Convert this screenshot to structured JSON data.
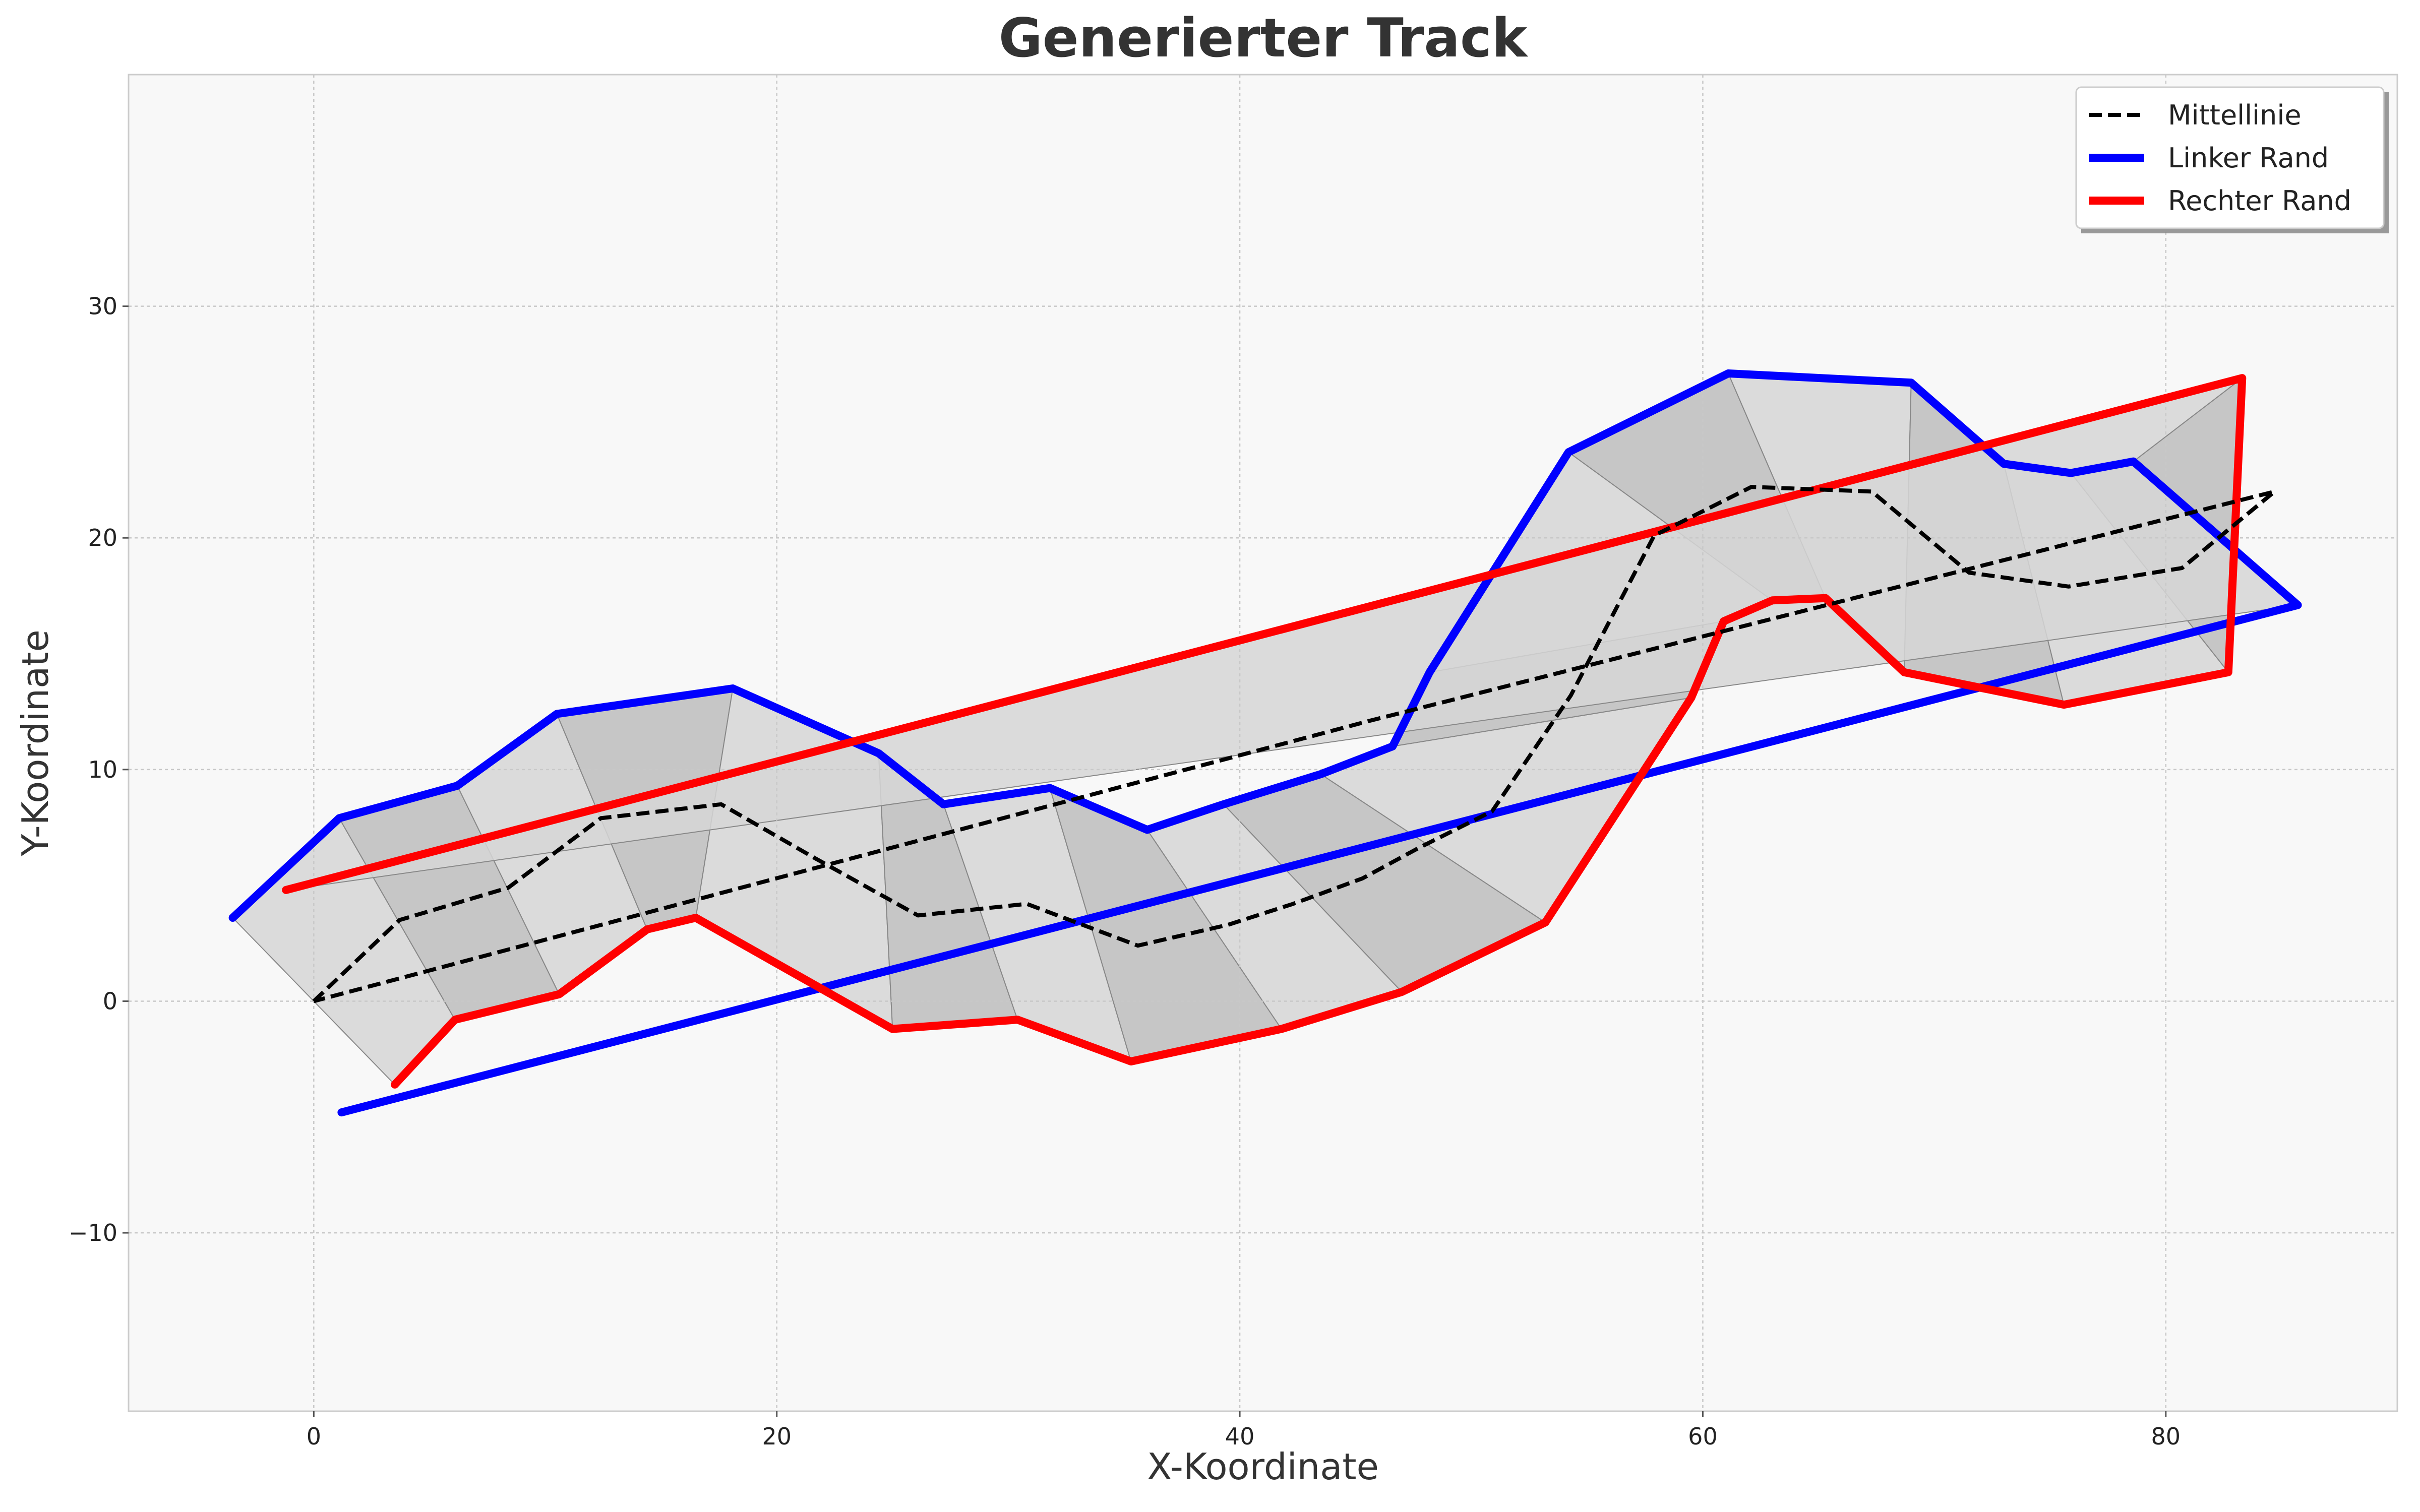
{
  "chart_data": {
    "type": "line",
    "title": "Generierter Track",
    "xlabel": "X-Koordinate",
    "ylabel": "Y-Koordinate",
    "xlim": [
      -8,
      90
    ],
    "ylim": [
      -17.7,
      40
    ],
    "xticks": [
      0,
      20,
      40,
      60,
      80
    ],
    "yticks": [
      -10,
      0,
      10,
      20,
      30
    ],
    "grid": true,
    "legend_position": "top-right",
    "series": [
      {
        "name": "Mittellinie",
        "style": "dashed",
        "color": "#000000",
        "points": [
          [
            0,
            0
          ],
          [
            3.7,
            3.5
          ],
          [
            8.4,
            4.9
          ],
          [
            12.4,
            7.9
          ],
          [
            17.6,
            8.5
          ],
          [
            21.6,
            6.2
          ],
          [
            26.1,
            3.7
          ],
          [
            30.8,
            4.2
          ],
          [
            35.6,
            2.4
          ],
          [
            39.5,
            3.3
          ],
          [
            42.3,
            4.2
          ],
          [
            45.3,
            5.3
          ],
          [
            47.7,
            6.6
          ],
          [
            50.9,
            8.2
          ],
          [
            54.3,
            13.2
          ],
          [
            57.9,
            20.1
          ],
          [
            62.1,
            22.2
          ],
          [
            67.3,
            22.0
          ],
          [
            71.5,
            18.5
          ],
          [
            75.8,
            17.9
          ],
          [
            80.7,
            18.7
          ],
          [
            84.7,
            22.0
          ],
          [
            45.6,
            12.1
          ],
          [
            0,
            0
          ]
        ]
      },
      {
        "name": "Linker Rand",
        "style": "solid",
        "color": "#0000ff",
        "points": [
          [
            -3.5,
            3.6
          ],
          [
            1.1,
            7.9
          ],
          [
            6.2,
            9.3
          ],
          [
            10.5,
            12.4
          ],
          [
            18.1,
            13.5
          ],
          [
            24.4,
            10.7
          ],
          [
            27.2,
            8.5
          ],
          [
            31.8,
            9.2
          ],
          [
            36.0,
            7.4
          ],
          [
            39.3,
            8.5
          ],
          [
            43.5,
            9.8
          ],
          [
            46.6,
            11.0
          ],
          [
            48.2,
            14.2
          ],
          [
            54.2,
            23.7
          ],
          [
            61.1,
            27.1
          ],
          [
            69.0,
            26.7
          ],
          [
            73.0,
            23.2
          ],
          [
            75.9,
            22.8
          ],
          [
            78.6,
            23.3
          ],
          [
            85.7,
            17.1
          ],
          [
            1.2,
            -4.8
          ]
        ]
      },
      {
        "name": "Rechter Rand",
        "style": "solid",
        "color": "#ff0000",
        "points": [
          [
            3.5,
            -3.6
          ],
          [
            6.1,
            -0.8
          ],
          [
            10.6,
            0.3
          ],
          [
            14.4,
            3.1
          ],
          [
            16.5,
            3.6
          ],
          [
            25.0,
            -1.2
          ],
          [
            30.4,
            -0.8
          ],
          [
            35.3,
            -2.6
          ],
          [
            41.8,
            -1.2
          ],
          [
            47.0,
            0.4
          ],
          [
            53.2,
            3.4
          ],
          [
            59.5,
            13.1
          ],
          [
            60.9,
            16.4
          ],
          [
            63.0,
            17.3
          ],
          [
            65.3,
            17.4
          ],
          [
            68.7,
            14.2
          ],
          [
            75.6,
            12.8
          ],
          [
            82.7,
            14.2
          ],
          [
            83.3,
            26.9
          ],
          [
            -1.2,
            4.8
          ]
        ]
      }
    ]
  }
}
